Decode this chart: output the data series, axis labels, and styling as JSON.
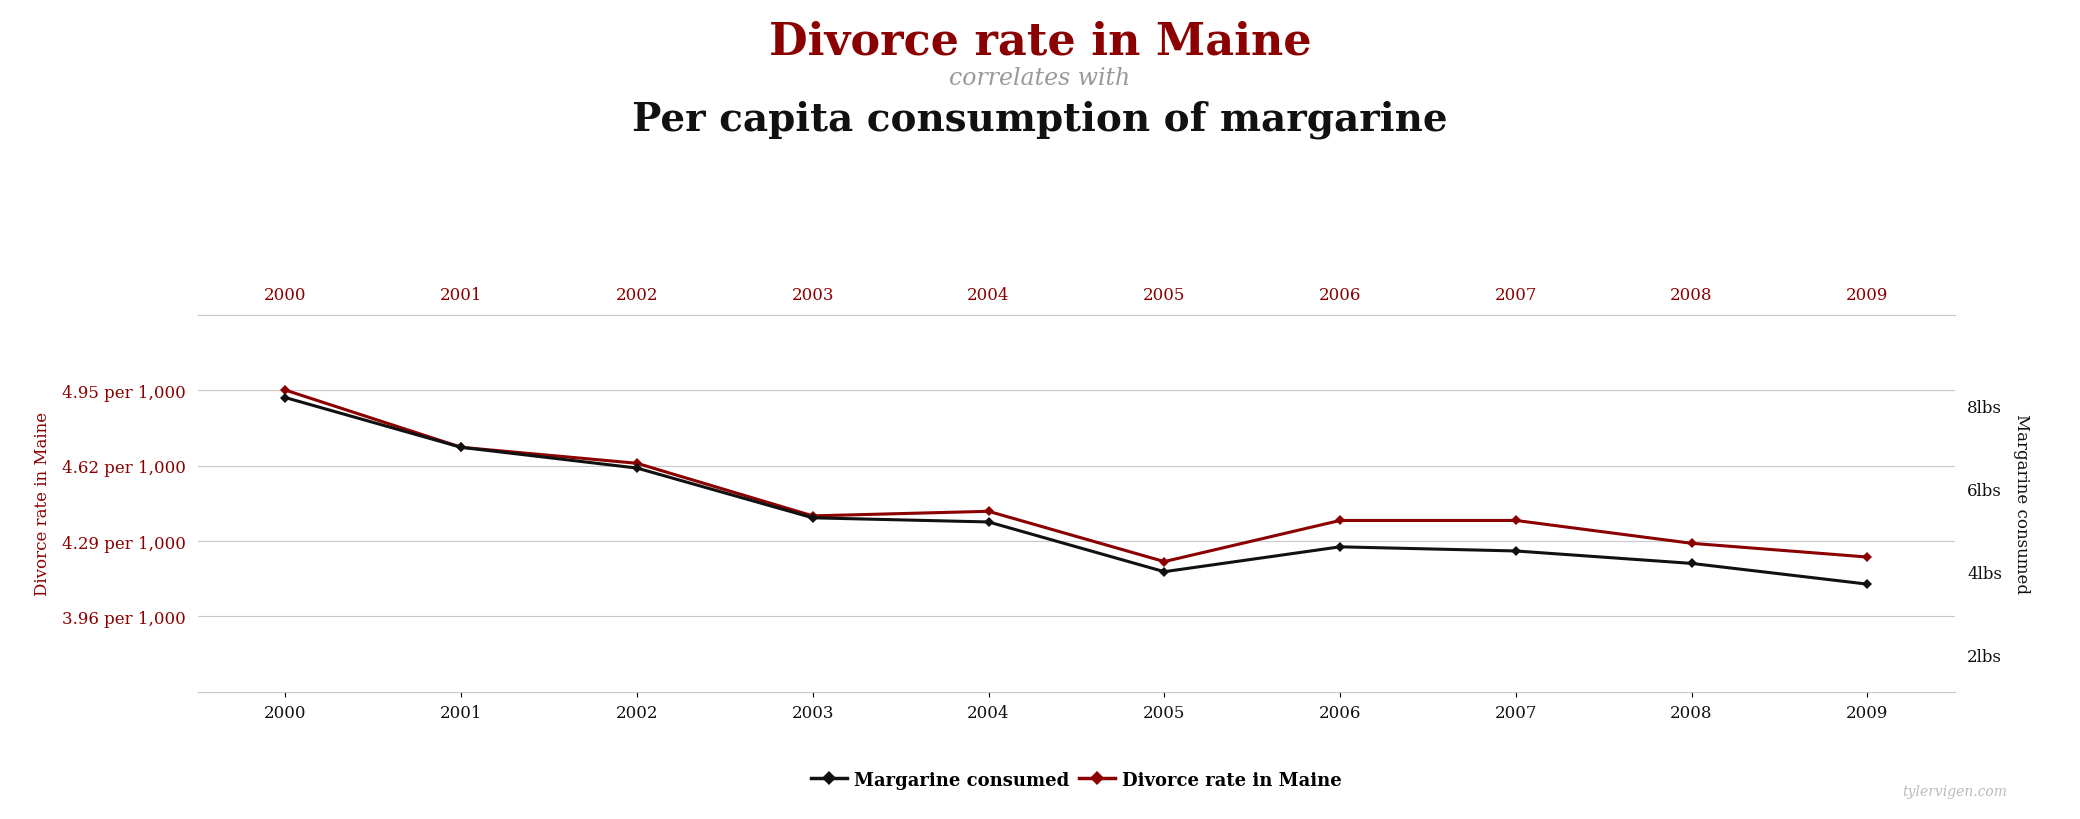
{
  "years": [
    2000,
    2001,
    2002,
    2003,
    2004,
    2005,
    2006,
    2007,
    2008,
    2009
  ],
  "divorce_rate": [
    4.95,
    4.7,
    4.63,
    4.4,
    4.42,
    4.2,
    4.38,
    4.38,
    4.28,
    4.22
  ],
  "margarine_consumed": [
    8.2,
    7.0,
    6.5,
    5.3,
    5.2,
    4.0,
    4.6,
    4.5,
    4.2,
    3.7
  ],
  "title_line1": "Divorce rate in Maine",
  "title_line2": "correlates with",
  "title_line3": "Per capita consumption of margarine",
  "ylabel_left": "Divorce rate in Maine",
  "ylabel_right": "Margarine consumed",
  "yticks_left": [
    3.96,
    4.29,
    4.62,
    4.95
  ],
  "ytick_labels_left": [
    "3.96 per 1,000",
    "4.29 per 1,000",
    "4.62 per 1,000",
    "4.95 per 1,000"
  ],
  "yticks_right": [
    2,
    4,
    6,
    8
  ],
  "ytick_labels_right": [
    "2lbs",
    "4lbs",
    "6lbs",
    "8lbs"
  ],
  "ylim_left": [
    3.63,
    5.28
  ],
  "ylim_right": [
    1.1,
    10.2
  ],
  "color_divorce": "#8B0000",
  "color_margarine": "#111111",
  "legend_label_margarine": "Margarine consumed",
  "legend_label_divorce": "Divorce rate in Maine",
  "watermark": "tylervigen.com",
  "background_color": "#ffffff",
  "grid_color": "#c8c8c8"
}
